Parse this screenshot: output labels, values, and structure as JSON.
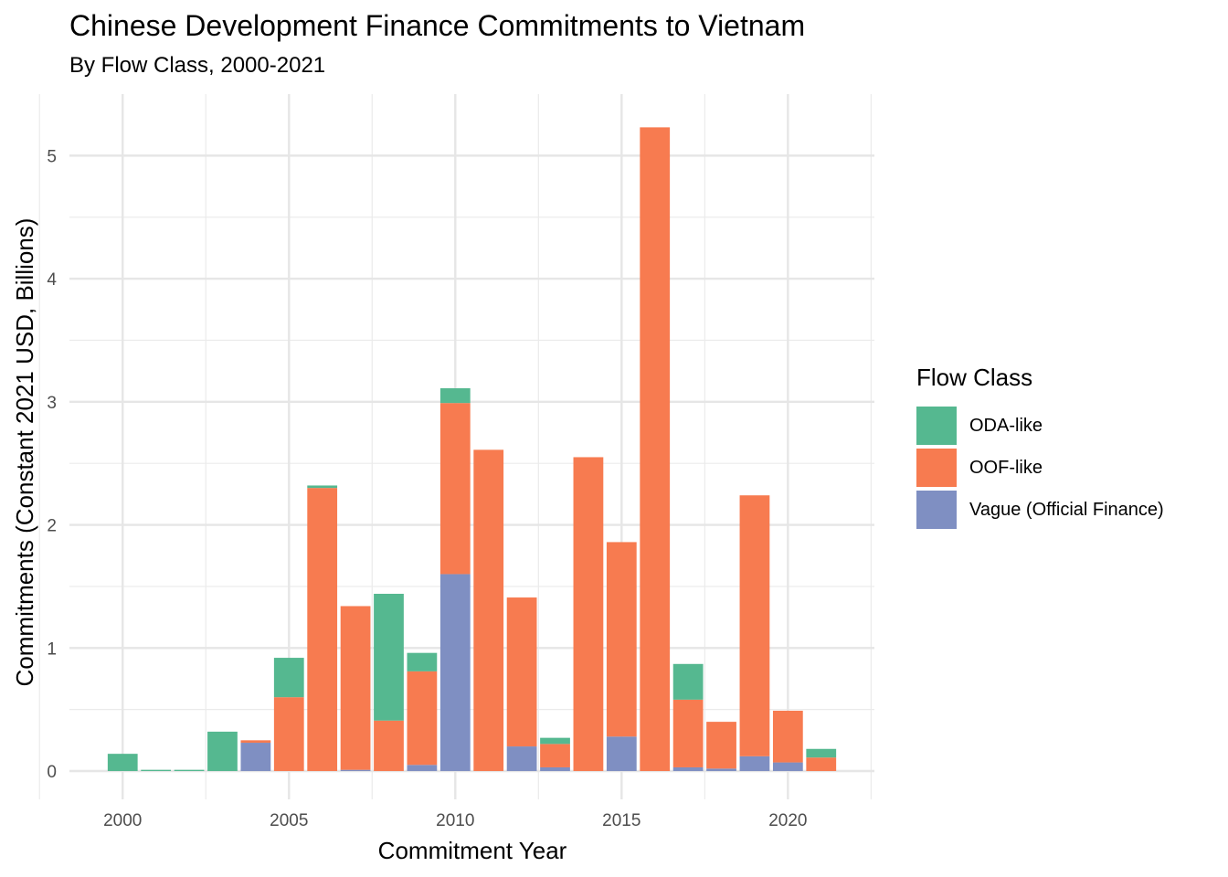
{
  "chart_data": {
    "type": "bar",
    "stacked": true,
    "title": "Chinese Development Finance Commitments to Vietnam",
    "subtitle": "By Flow Class, 2000-2021",
    "xlabel": "Commitment Year",
    "ylabel": "Commitments (Constant 2021 USD, Billions)",
    "xlim": [
      1998.4,
      2022.6
    ],
    "ylim": [
      -0.23,
      5.5
    ],
    "x_ticks": [
      2000,
      2005,
      2010,
      2015,
      2020
    ],
    "y_ticks": [
      0,
      1,
      2,
      3,
      4,
      5
    ],
    "grid": true,
    "legend_title": "Flow Class",
    "legend_position": "right",
    "years": [
      2000,
      2001,
      2002,
      2003,
      2004,
      2005,
      2006,
      2007,
      2008,
      2009,
      2010,
      2011,
      2012,
      2013,
      2014,
      2015,
      2016,
      2017,
      2018,
      2019,
      2020,
      2021
    ],
    "series": [
      {
        "name": "Vague (Official Finance)",
        "color": "#7f8fc2",
        "values": [
          0,
          0,
          0,
          0,
          0.23,
          0,
          0,
          0.01,
          0,
          0.05,
          1.6,
          0,
          0.2,
          0.03,
          0,
          0.28,
          0,
          0.03,
          0.02,
          0.12,
          0.07,
          0
        ]
      },
      {
        "name": "OOF-like",
        "color": "#f77b50",
        "values": [
          0,
          0,
          0,
          0,
          0.02,
          0.6,
          2.3,
          1.33,
          0.41,
          0.76,
          1.39,
          2.61,
          1.21,
          0.19,
          2.55,
          1.58,
          5.23,
          0.55,
          0.38,
          2.12,
          0.42,
          0.11
        ]
      },
      {
        "name": "ODA-like",
        "color": "#55b890",
        "values": [
          0.14,
          0.01,
          0.01,
          0.32,
          0,
          0.32,
          0.02,
          0,
          1.03,
          0.15,
          0.12,
          0,
          0,
          0.05,
          0,
          0,
          0,
          0.29,
          0,
          0,
          0,
          0.07
        ]
      }
    ]
  },
  "legend": {
    "title": "Flow Class",
    "items": [
      {
        "label": "ODA-like",
        "color": "#55b890"
      },
      {
        "label": "OOF-like",
        "color": "#f77b50"
      },
      {
        "label": "Vague (Official Finance)",
        "color": "#7f8fc2"
      }
    ]
  }
}
